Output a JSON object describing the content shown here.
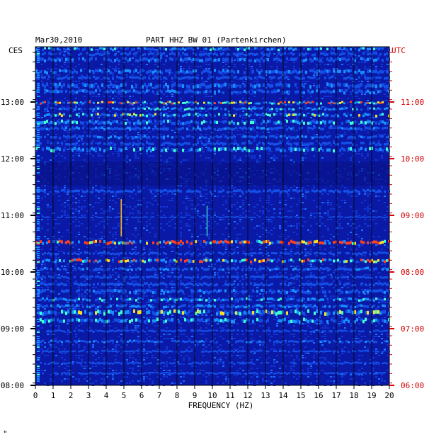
{
  "header": {
    "date": "Mar30,2010",
    "title": "PART HHZ BW 01 (Partenkirchen)"
  },
  "left_zone_label": "CES",
  "right_zone_label": "UTC",
  "xlabel": "FREQUENCY (HZ)",
  "footer_mark": "\"",
  "colors": {
    "background_band": "#0a1aa6",
    "dark_band": "#071080",
    "grid": "#000000",
    "left_axis_text": "#000000",
    "right_axis_text": "#d40000",
    "ticks_right": "#d40000"
  },
  "chart_data": {
    "type": "heatmap",
    "title": "PART HHZ BW 01 (Partenkirchen)",
    "xlabel": "FREQUENCY (HZ)",
    "x_ticks": [
      "0",
      "1",
      "2",
      "3",
      "4",
      "5",
      "6",
      "7",
      "8",
      "9",
      "10",
      "11",
      "12",
      "13",
      "14",
      "15",
      "16",
      "17",
      "18",
      "19",
      "20"
    ],
    "xlim": [
      0,
      20
    ],
    "y_left_ticks": [
      "13:00",
      "12:00",
      "11:00",
      "10:00",
      "09:00",
      "08:00"
    ],
    "y_right_ticks": [
      "11:00",
      "10:00",
      "09:00",
      "08:00",
      "07:00",
      "06:00"
    ],
    "grid": true,
    "bands": [
      {
        "t": 0.0,
        "h": 0.012,
        "level": 0.55
      },
      {
        "t": 0.015,
        "h": 0.012,
        "level": 0.4
      },
      {
        "t": 0.03,
        "h": 0.015,
        "level": 0.45
      },
      {
        "t": 0.065,
        "h": 0.015,
        "level": 0.5
      },
      {
        "t": 0.085,
        "h": 0.012,
        "level": 0.35
      },
      {
        "t": 0.105,
        "h": 0.018,
        "level": 0.45
      },
      {
        "t": 0.125,
        "h": 0.014,
        "level": 0.5
      },
      {
        "t": 0.16,
        "h": 0.01,
        "level": 0.7
      },
      {
        "t": 0.178,
        "h": 0.01,
        "level": 0.55
      },
      {
        "t": 0.195,
        "h": 0.012,
        "level": 0.6
      },
      {
        "t": 0.215,
        "h": 0.015,
        "level": 0.55
      },
      {
        "t": 0.235,
        "h": 0.012,
        "level": 0.45
      },
      {
        "t": 0.26,
        "h": 0.012,
        "level": 0.45
      },
      {
        "t": 0.28,
        "h": 0.012,
        "level": 0.4
      },
      {
        "t": 0.295,
        "h": 0.016,
        "level": 0.55
      },
      {
        "t": 0.42,
        "h": 0.012,
        "level": 0.35
      },
      {
        "t": 0.5,
        "h": 0.006,
        "level": 0.3
      },
      {
        "t": 0.57,
        "h": 0.014,
        "level": 0.85
      },
      {
        "t": 0.605,
        "h": 0.01,
        "level": 0.35
      },
      {
        "t": 0.625,
        "h": 0.013,
        "level": 0.7
      },
      {
        "t": 0.65,
        "h": 0.012,
        "level": 0.45
      },
      {
        "t": 0.675,
        "h": 0.01,
        "level": 0.35
      },
      {
        "t": 0.695,
        "h": 0.012,
        "level": 0.4
      },
      {
        "t": 0.715,
        "h": 0.014,
        "level": 0.45
      },
      {
        "t": 0.74,
        "h": 0.012,
        "level": 0.55
      },
      {
        "t": 0.76,
        "h": 0.012,
        "level": 0.5
      },
      {
        "t": 0.775,
        "h": 0.018,
        "level": 0.6
      },
      {
        "t": 0.8,
        "h": 0.016,
        "level": 0.55
      },
      {
        "t": 0.835,
        "h": 0.008,
        "level": 0.35
      },
      {
        "t": 0.865,
        "h": 0.01,
        "level": 0.45
      },
      {
        "t": 0.895,
        "h": 0.008,
        "level": 0.3
      },
      {
        "t": 0.93,
        "h": 0.008,
        "level": 0.3
      },
      {
        "t": 0.96,
        "h": 0.008,
        "level": 0.3
      }
    ]
  }
}
